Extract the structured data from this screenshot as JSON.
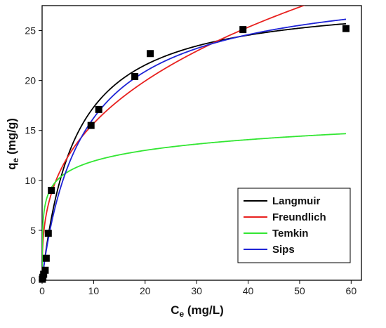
{
  "chart_data": {
    "type": "scatter",
    "xlabel": {
      "main": "C",
      "sub": "e",
      "rest": " (mg/L)"
    },
    "ylabel": {
      "main": "q",
      "sub": "e",
      "rest": " (mg/g)"
    },
    "xlim": [
      0,
      62
    ],
    "ylim": [
      0,
      27.5
    ],
    "xticks": [
      0,
      10,
      20,
      30,
      40,
      50,
      60
    ],
    "yticks": [
      0,
      5,
      10,
      15,
      20,
      25
    ],
    "grid": false,
    "legend_position": "bottom-right",
    "experimental": {
      "marker": "filled-square",
      "color": "#000000",
      "points": [
        [
          0.05,
          0.1
        ],
        [
          0.15,
          0.3
        ],
        [
          0.3,
          0.6
        ],
        [
          0.6,
          1.0
        ],
        [
          0.8,
          2.2
        ],
        [
          1.2,
          4.7
        ],
        [
          1.8,
          9.0
        ],
        [
          9.5,
          15.5
        ],
        [
          11.0,
          17.1
        ],
        [
          18.0,
          20.4
        ],
        [
          21.0,
          22.7
        ],
        [
          39.0,
          25.1
        ],
        [
          59.0,
          25.2
        ]
      ]
    },
    "series": [
      {
        "name": "Langmuir",
        "color": "#000000",
        "model": "langmuir",
        "params": {
          "qm": 28.5,
          "K": 0.155
        }
      },
      {
        "name": "Freundlich",
        "color": "#e8211f",
        "model": "freundlich",
        "params": {
          "Kf": 7.1,
          "n": 2.9
        }
      },
      {
        "name": "Temkin",
        "color": "#33e633",
        "model": "temkin",
        "params": {
          "B": 1.55,
          "A": 220
        }
      },
      {
        "name": "Sips",
        "color": "#1f24d6",
        "model": "sips",
        "params": {
          "qm": 30.5,
          "K": 0.115,
          "n": 1.07
        }
      }
    ]
  }
}
